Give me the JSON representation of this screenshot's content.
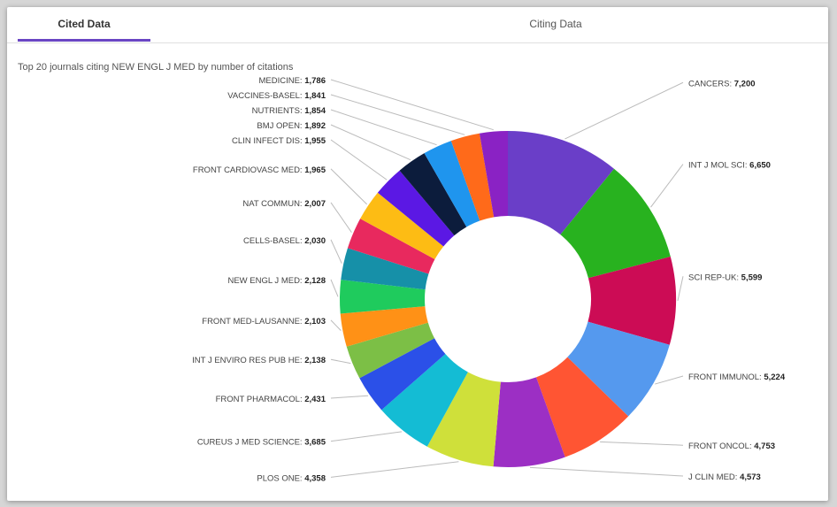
{
  "tabs": [
    {
      "label": "Cited Data",
      "active": true
    },
    {
      "label": "Citing Data",
      "active": false
    }
  ],
  "subtitle": "Top 20 journals citing NEW ENGL J MED by number of citations",
  "chart_data": {
    "type": "pie",
    "donut": true,
    "title": "Top 20 journals citing NEW ENGL J MED by number of citations",
    "label_format": "NAME: value",
    "slices": [
      {
        "name": "CANCERS",
        "value_label": "7,200",
        "value": 7200,
        "color": "#6a3ec8"
      },
      {
        "name": "INT J MOL SCI",
        "value_label": "6,650",
        "value": 6650,
        "color": "#28b21f"
      },
      {
        "name": "SCI REP-UK",
        "value_label": "5,599",
        "value": 5599,
        "color": "#cc0c55"
      },
      {
        "name": "FRONT IMMUNOL",
        "value_label": "5,224",
        "value": 5224,
        "color": "#5599ee"
      },
      {
        "name": "FRONT ONCOL",
        "value_label": "4,753",
        "value": 4753,
        "color": "#ff5533"
      },
      {
        "name": "J CLIN MED",
        "value_label": "4,573",
        "value": 4573,
        "color": "#9c2fc4"
      },
      {
        "name": "PLOS ONE",
        "value_label": "4,358",
        "value": 4358,
        "color": "#cfe03a"
      },
      {
        "name": "CUREUS J MED SCIENCE",
        "value_label": "3,685",
        "value": 3685,
        "color": "#14bcd4"
      },
      {
        "name": "FRONT PHARMACOL",
        "value_label": "2,431",
        "value": 2431,
        "color": "#2b50e8"
      },
      {
        "name": "INT J ENVIRO RES PUB HE",
        "value_label": "2,138",
        "value": 2138,
        "color": "#7cbf46"
      },
      {
        "name": "FRONT MED-LAUSANNE",
        "value_label": "2,103",
        "value": 2103,
        "color": "#ff9116"
      },
      {
        "name": "NEW ENGL J MED",
        "value_label": "2,128",
        "value": 2128,
        "color": "#1fcb5d"
      },
      {
        "name": "CELLS-BASEL",
        "value_label": "2,030",
        "value": 2030,
        "color": "#1690a8"
      },
      {
        "name": "NAT COMMUN",
        "value_label": "2,007",
        "value": 2007,
        "color": "#e8295e"
      },
      {
        "name": "FRONT CARDIOVASC MED",
        "value_label": "1,965",
        "value": 1965,
        "color": "#fdbc14"
      },
      {
        "name": "CLIN INFECT DIS",
        "value_label": "1,955",
        "value": 1955,
        "color": "#5b18e4"
      },
      {
        "name": "BMJ OPEN",
        "value_label": "1,892",
        "value": 1892,
        "color": "#0c1c3c"
      },
      {
        "name": "NUTRIENTS",
        "value_label": "1,854",
        "value": 1854,
        "color": "#1f95ee"
      },
      {
        "name": "VACCINES-BASEL",
        "value_label": "1,841",
        "value": 1841,
        "color": "#ff6a1a"
      },
      {
        "name": "MEDICINE",
        "value_label": "1,786",
        "value": 1786,
        "color": "#8a22c4"
      }
    ]
  }
}
